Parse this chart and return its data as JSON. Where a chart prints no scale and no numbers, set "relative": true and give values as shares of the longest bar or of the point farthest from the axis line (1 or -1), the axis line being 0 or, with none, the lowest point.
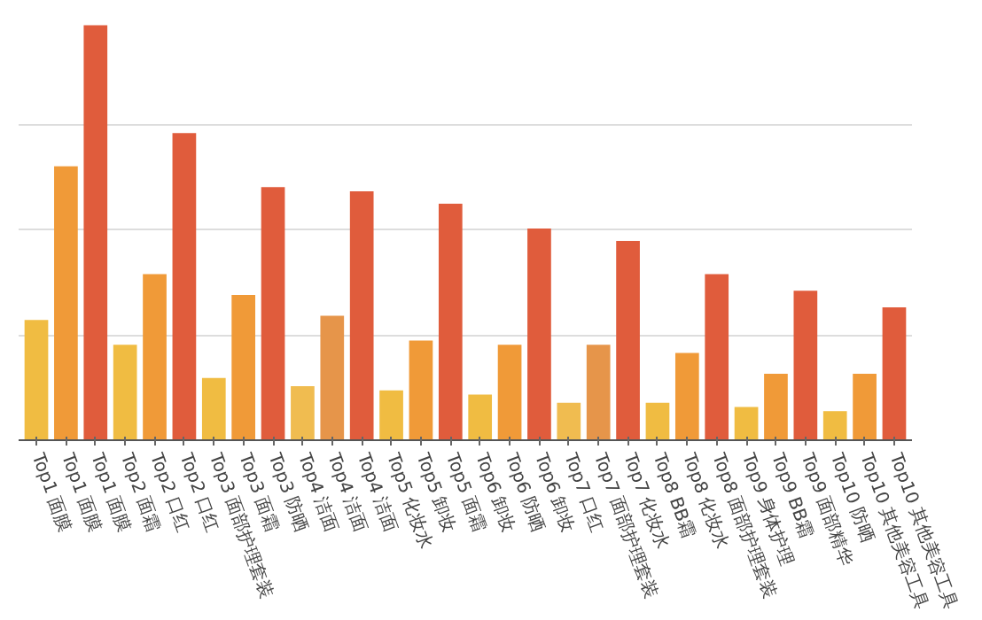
{
  "chart_data": {
    "type": "bar",
    "relative": true,
    "grid": "y",
    "categories": [
      "Top1 面膜",
      "Top1 面膜",
      "Top1 面膜",
      "Top2 面霜",
      "Top2 口红",
      "Top2 口红",
      "Top3 面部护理套装",
      "Top3 面霜",
      "Top3 防晒",
      "Top4 洁面",
      "Top4 洁面",
      "Top4 洁面",
      "Top5 化妆水",
      "Top5 卸妆",
      "Top5 面霜",
      "Top6 卸妆",
      "Top6 防晒",
      "Top6 卸妆",
      "Top7 口红",
      "Top7 面部护理套装",
      "Top7 化妆水",
      "Top8 BB霜",
      "Top8 化妆水",
      "Top8 面部护理套装",
      "Top9 身体护理",
      "Top9 BB霜",
      "Top9 面部精华",
      "Top10 防晒",
      "Top10 其他美容工具",
      "Top10 其他美容工具"
    ],
    "values": [
      0.29,
      0.66,
      1,
      0.23,
      0.4,
      0.74,
      0.15,
      0.35,
      0.61,
      0.13,
      0.3,
      0.6,
      0.12,
      0.24,
      0.57,
      0.11,
      0.23,
      0.51,
      0.09,
      0.23,
      0.48,
      0.09,
      0.21,
      0.4,
      0.08,
      0.16,
      0.36,
      0.07,
      0.16,
      0.32
    ],
    "colors": [
      "#f0bc42",
      "#f09a38",
      "#e05c3c",
      "#f0bc42",
      "#f09a38",
      "#e05c3c",
      "#f0bc42",
      "#f09a38",
      "#e05c3c",
      "#f0bc50",
      "#e6954a",
      "#e05c3c",
      "#f0bc42",
      "#f09a38",
      "#e05c3c",
      "#f0bc42",
      "#f09a38",
      "#e05c3c",
      "#f0bc50",
      "#e6954a",
      "#e05c3c",
      "#f0bc42",
      "#f09a38",
      "#e05c3c",
      "#f0bc42",
      "#f09a38",
      "#e05c3c",
      "#f0bc42",
      "#f09a38",
      "#e05c3c"
    ]
  }
}
